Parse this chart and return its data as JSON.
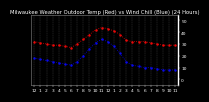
{
  "title": "Milwaukee Weather Outdoor Temp (Red) vs Wind Chill (Blue) (24 Hours)",
  "bg_color": "#000000",
  "plot_bg": "#000000",
  "red_color": "#ff0000",
  "blue_color": "#0000ff",
  "hours": [
    0,
    1,
    2,
    3,
    4,
    5,
    6,
    7,
    8,
    9,
    10,
    11,
    12,
    13,
    14,
    15,
    16,
    17,
    18,
    19,
    20,
    21,
    22,
    23
  ],
  "temp": [
    32,
    31,
    30,
    29,
    29,
    28,
    27,
    30,
    34,
    38,
    42,
    44,
    43,
    41,
    38,
    33,
    32,
    32,
    32,
    31,
    30,
    29,
    29,
    29
  ],
  "windchill": [
    18,
    17,
    16,
    15,
    14,
    13,
    12,
    15,
    20,
    26,
    31,
    34,
    32,
    28,
    22,
    15,
    12,
    11,
    10,
    10,
    9,
    8,
    8,
    8
  ],
  "ylim": [
    -5,
    55
  ],
  "yticks": [
    0,
    10,
    20,
    30,
    40,
    50
  ],
  "ytick_labels": [
    "0",
    "10",
    "20",
    "30",
    "40",
    "50"
  ],
  "xtick_labels": [
    "12",
    "1",
    "2",
    "3",
    "4",
    "5",
    "6",
    "7",
    "8",
    "9",
    "10",
    "11",
    "12",
    "1",
    "2",
    "3",
    "4",
    "5",
    "6",
    "7",
    "8",
    "9",
    "10",
    "11"
  ],
  "title_fontsize": 3.8,
  "tick_fontsize": 3.2,
  "text_color": "#ffffff",
  "grid_color": "#555555"
}
